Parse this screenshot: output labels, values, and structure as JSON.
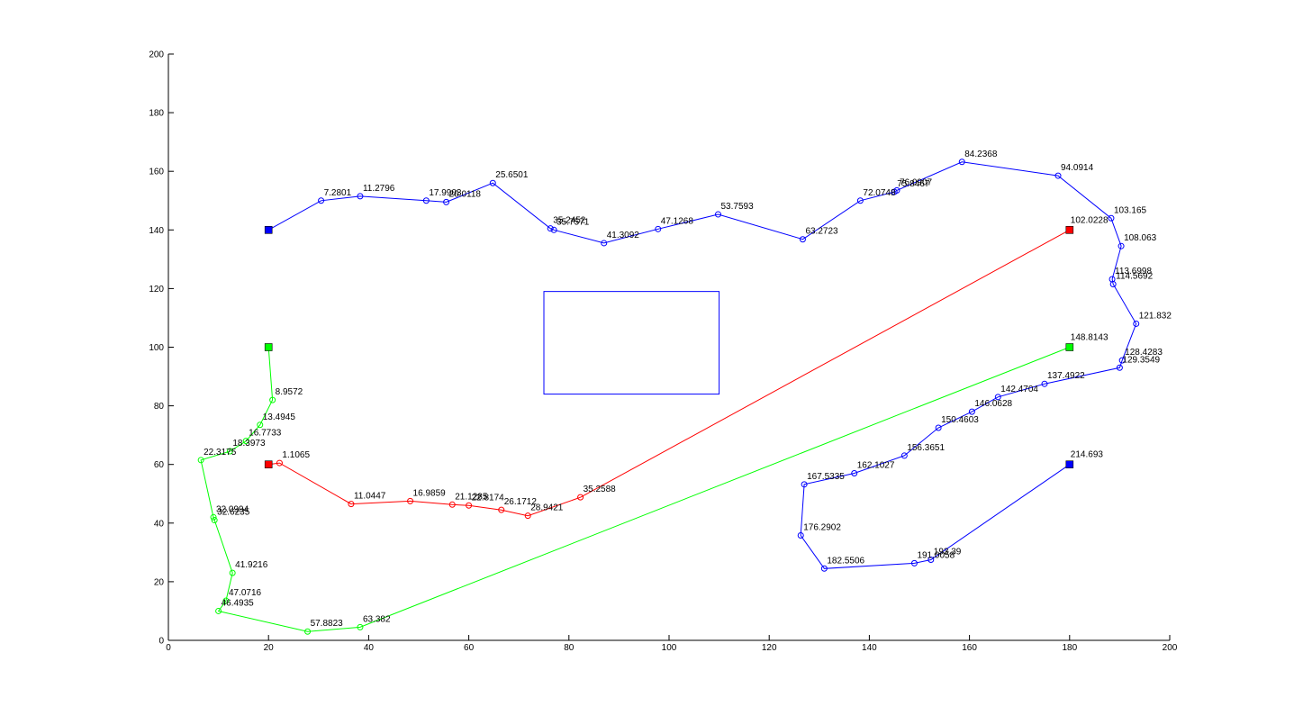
{
  "chart_data": {
    "type": "line",
    "title": "",
    "xlabel": "",
    "ylabel": "",
    "xlim": [
      0,
      200
    ],
    "ylim": [
      0,
      200
    ],
    "xticks": [
      0,
      20,
      40,
      60,
      80,
      100,
      120,
      140,
      160,
      180,
      200
    ],
    "yticks": [
      0,
      20,
      40,
      60,
      80,
      100,
      120,
      140,
      160,
      180,
      200
    ],
    "grid": false,
    "legend": "none",
    "obstacle": {
      "x": [
        75,
        110
      ],
      "y": [
        84,
        119
      ],
      "color": "#0000ff"
    },
    "series": [
      {
        "color": "#0000ff",
        "start": [
          20,
          140
        ],
        "end": [
          180,
          60
        ],
        "start_color": "#0000ff",
        "end_color": "#0000ff",
        "end_label": "214.693",
        "points": [
          {
            "x": 30.5,
            "y": 150.0,
            "label": "7.2801"
          },
          {
            "x": 38.3,
            "y": 151.5,
            "label": "11.2796"
          },
          {
            "x": 51.5,
            "y": 150.0,
            "label": "17.9903"
          },
          {
            "x": 55.5,
            "y": 149.5,
            "label": "20.0118"
          },
          {
            "x": 64.8,
            "y": 156.0,
            "label": "25.6501"
          },
          {
            "x": 76.3,
            "y": 140.5,
            "label": "35.2452"
          },
          {
            "x": 77.0,
            "y": 140.0,
            "label": "35.7571"
          },
          {
            "x": 87.0,
            "y": 135.5,
            "label": "41.3092"
          },
          {
            "x": 97.8,
            "y": 140.3,
            "label": "47.1268"
          },
          {
            "x": 109.8,
            "y": 145.3,
            "label": "53.7593"
          },
          {
            "x": 126.7,
            "y": 136.8,
            "label": "63.2723"
          },
          {
            "x": 138.2,
            "y": 150.0,
            "label": "72.0748"
          },
          {
            "x": 145.0,
            "y": 153.0,
            "label": "75.8467"
          },
          {
            "x": 145.5,
            "y": 153.5,
            "label": "76.0907"
          },
          {
            "x": 158.5,
            "y": 163.2,
            "label": "84.2368"
          },
          {
            "x": 177.7,
            "y": 158.5,
            "label": "94.0914"
          },
          {
            "x": 188.3,
            "y": 144.0,
            "label": "103.165"
          },
          {
            "x": 190.3,
            "y": 134.5,
            "label": "108.063"
          },
          {
            "x": 188.5,
            "y": 123.2,
            "label": "113.6998"
          },
          {
            "x": 188.7,
            "y": 121.5,
            "label": "114.5692"
          },
          {
            "x": 193.3,
            "y": 108.0,
            "label": "121.832"
          },
          {
            "x": 190.5,
            "y": 95.5,
            "label": "128.4283"
          },
          {
            "x": 190.0,
            "y": 93.0,
            "label": "129.3549"
          },
          {
            "x": 175.0,
            "y": 87.5,
            "label": "137.4922"
          },
          {
            "x": 165.7,
            "y": 83.0,
            "label": "142.4704"
          },
          {
            "x": 160.5,
            "y": 78.0,
            "label": "146.0628"
          },
          {
            "x": 153.8,
            "y": 72.5,
            "label": "150.4603"
          },
          {
            "x": 147.0,
            "y": 63.0,
            "label": "156.3651"
          },
          {
            "x": 137.0,
            "y": 57.0,
            "label": "162.1027"
          },
          {
            "x": 127.0,
            "y": 53.2,
            "label": "167.5335"
          },
          {
            "x": 126.3,
            "y": 35.8,
            "label": "176.2902"
          },
          {
            "x": 131.0,
            "y": 24.5,
            "label": "182.5506"
          },
          {
            "x": 149.0,
            "y": 26.3,
            "label": "191.0058"
          },
          {
            "x": 152.3,
            "y": 27.5,
            "label": "193.39"
          }
        ]
      },
      {
        "color": "#ff0000",
        "start": [
          20,
          60
        ],
        "end": [
          180,
          140
        ],
        "start_color": "#ff0000",
        "end_color": "#ff0000",
        "end_label": "102.0228",
        "points": [
          {
            "x": 22.2,
            "y": 60.5,
            "label": "1.1065"
          },
          {
            "x": 36.5,
            "y": 46.5,
            "label": "11.0447"
          },
          {
            "x": 48.3,
            "y": 47.5,
            "label": "16.9859"
          },
          {
            "x": 56.7,
            "y": 46.3,
            "label": "21.1285"
          },
          {
            "x": 60.0,
            "y": 46.0,
            "label": "22.8174"
          },
          {
            "x": 66.5,
            "y": 44.5,
            "label": "26.1712"
          },
          {
            "x": 71.8,
            "y": 42.5,
            "label": "28.9421"
          },
          {
            "x": 82.3,
            "y": 48.8,
            "label": "35.2588"
          }
        ]
      },
      {
        "color": "#00ff00",
        "start": [
          20,
          100
        ],
        "end": [
          180,
          100
        ],
        "start_color": "#00ff00",
        "end_color": "#00ff00",
        "end_label": "148.8143",
        "points": [
          {
            "x": 20.8,
            "y": 82.0,
            "label": "8.9572"
          },
          {
            "x": 18.3,
            "y": 73.5,
            "label": "13.4945"
          },
          {
            "x": 15.5,
            "y": 68.0,
            "label": "16.7733"
          },
          {
            "x": 12.3,
            "y": 64.5,
            "label": "18.3973"
          },
          {
            "x": 6.5,
            "y": 61.5,
            "label": "22.3175"
          },
          {
            "x": 9.0,
            "y": 42.0,
            "label": "32.0994"
          },
          {
            "x": 9.2,
            "y": 41.0,
            "label": "32.6235"
          },
          {
            "x": 12.8,
            "y": 23.0,
            "label": "41.9216"
          },
          {
            "x": 11.5,
            "y": 13.5,
            "label": "47.0716"
          },
          {
            "x": 10.0,
            "y": 10.0,
            "label": "46.4935"
          },
          {
            "x": 27.8,
            "y": 3.0,
            "label": "57.8823"
          },
          {
            "x": 38.3,
            "y": 4.5,
            "label": "63.382"
          }
        ]
      }
    ]
  }
}
